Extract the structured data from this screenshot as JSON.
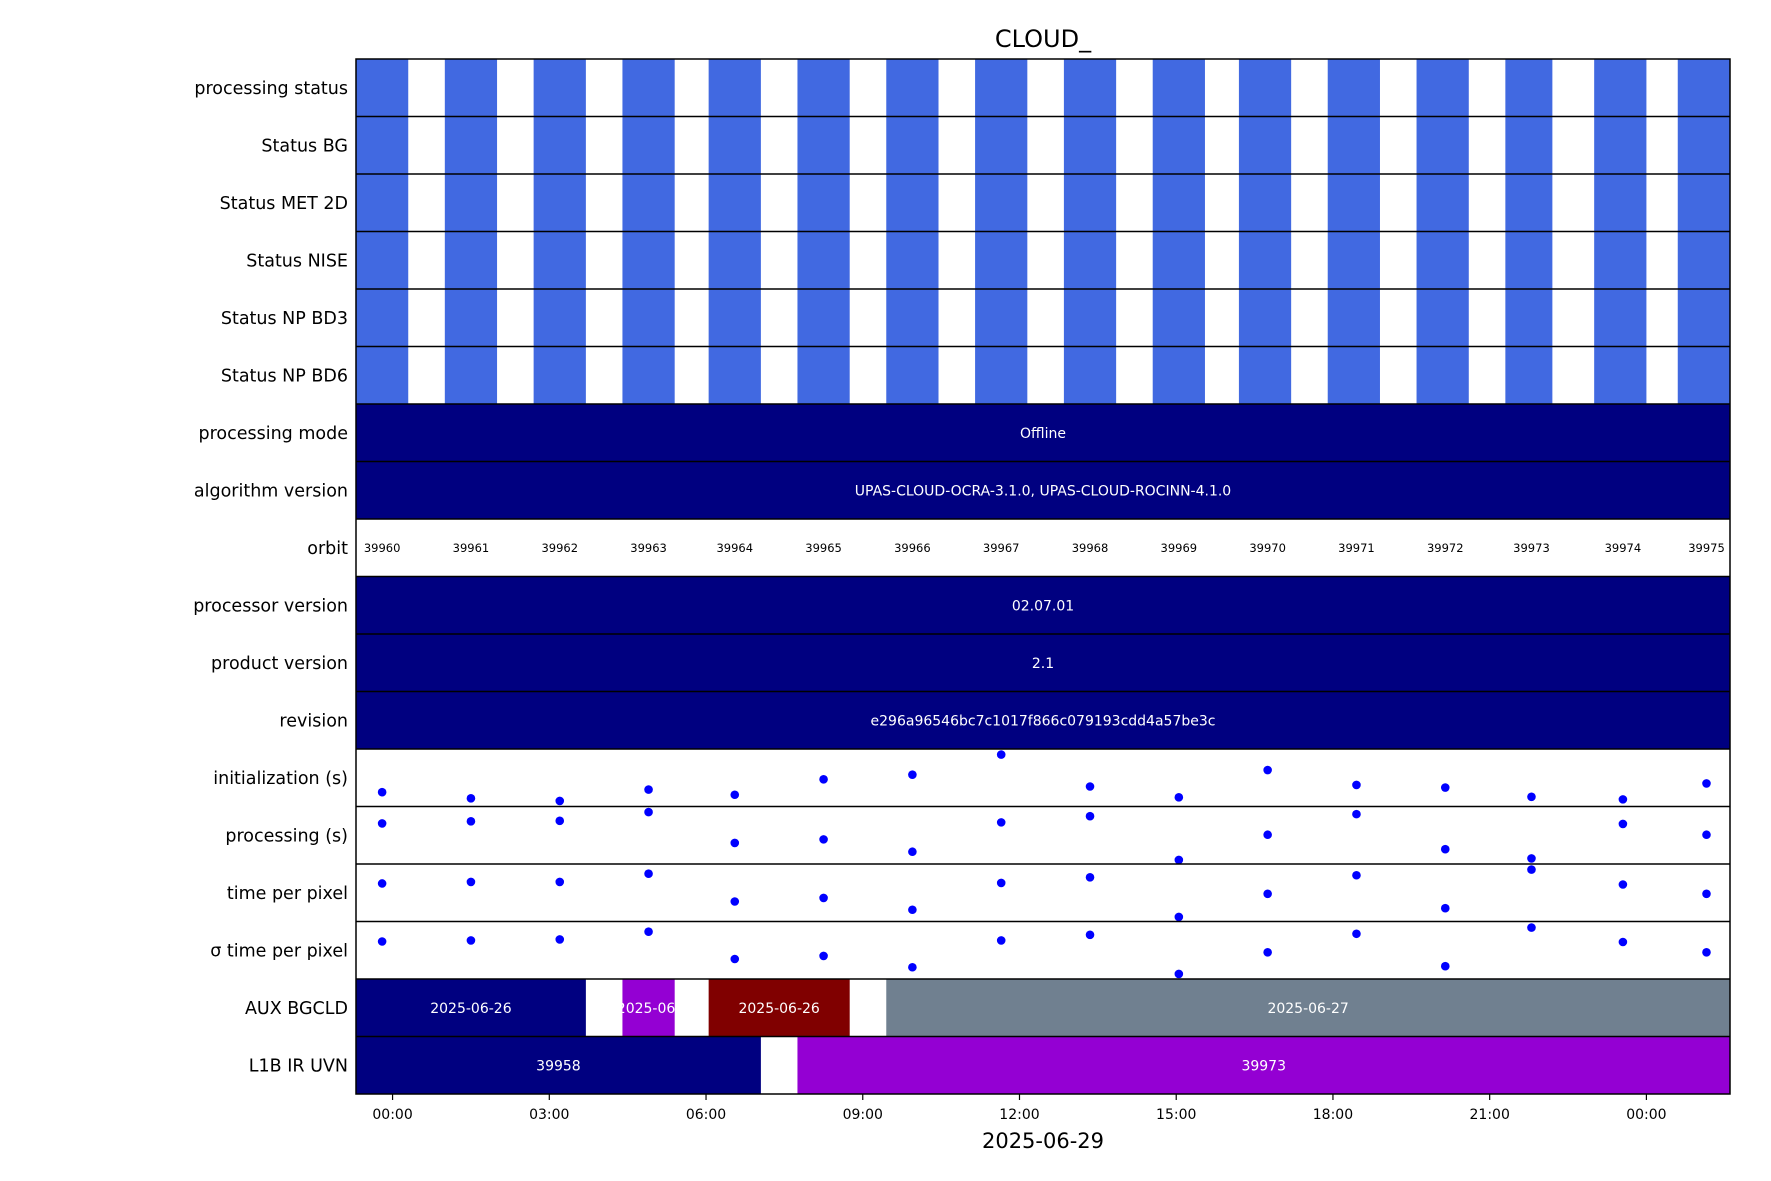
{
  "chart_data": {
    "type": "timeline",
    "title": "CLOUD_",
    "xlabel": "2025-06-29",
    "x_ticks": [
      "00:00",
      "03:00",
      "06:00",
      "09:00",
      "12:00",
      "15:00",
      "18:00",
      "21:00",
      "00:00"
    ],
    "x_tick_hours": [
      0,
      3,
      6,
      9,
      12,
      15,
      18,
      21,
      24
    ],
    "xlim_hours": [
      -0.7,
      25.6
    ],
    "colors": {
      "status_ok": "#4169e1",
      "navy": "#000080",
      "purple": "#9400d3",
      "darkred": "#800000",
      "slategray": "#708090",
      "points": "#0000ff"
    },
    "status_rows": [
      {
        "label": "processing status"
      },
      {
        "label": "Status BG"
      },
      {
        "label": "Status MET 2D"
      },
      {
        "label": "Status NISE"
      },
      {
        "label": "Status NP BD3"
      },
      {
        "label": "Status NP BD6"
      }
    ],
    "status_blocks_hours": [
      [
        -0.7,
        0.3
      ],
      [
        1.0,
        2.0
      ],
      [
        2.7,
        3.7
      ],
      [
        4.4,
        5.4
      ],
      [
        6.05,
        7.05
      ],
      [
        7.75,
        8.75
      ],
      [
        9.45,
        10.45
      ],
      [
        11.15,
        12.15
      ],
      [
        12.85,
        13.85
      ],
      [
        14.55,
        15.55
      ],
      [
        16.2,
        17.2
      ],
      [
        17.9,
        18.9
      ],
      [
        19.6,
        20.6
      ],
      [
        21.3,
        22.2
      ],
      [
        23.0,
        24.0
      ],
      [
        24.6,
        25.6
      ]
    ],
    "processing_mode": {
      "label": "processing mode",
      "value": "Offline"
    },
    "algorithm_version": {
      "label": "algorithm version",
      "value": "UPAS-CLOUD-OCRA-3.1.0, UPAS-CLOUD-ROCINN-4.1.0"
    },
    "orbit": {
      "label": "orbit",
      "values": [
        "39960",
        "39961",
        "39962",
        "39963",
        "39964",
        "39965",
        "39966",
        "39967",
        "39968",
        "39969",
        "39970",
        "39971",
        "39972",
        "39973",
        "39974",
        "39975"
      ],
      "hours": [
        -0.2,
        1.5,
        3.2,
        4.9,
        6.55,
        8.25,
        9.95,
        11.65,
        13.35,
        15.05,
        16.75,
        18.45,
        20.15,
        21.8,
        23.55,
        25.15
      ]
    },
    "processor_version": {
      "label": "processor version",
      "value": "02.07.01"
    },
    "product_version": {
      "label": "product version",
      "value": "2.1"
    },
    "revision": {
      "label": "revision",
      "value": "e296a96546bc7c1017f866c079193cdd4a57be3c"
    },
    "scatter_rows": [
      {
        "label": "initialization (s)",
        "x_hours": [
          -0.2,
          1.5,
          3.2,
          4.9,
          6.55,
          8.25,
          9.95,
          11.65,
          13.35,
          15.05,
          16.75,
          18.45,
          20.15,
          21.8,
          23.55,
          25.15
        ],
        "values": [
          0.22,
          0.1,
          0.05,
          0.27,
          0.17,
          0.47,
          0.56,
          0.95,
          0.33,
          0.12,
          0.65,
          0.36,
          0.31,
          0.13,
          0.08,
          0.39
        ]
      },
      {
        "label": "processing (s)",
        "x_hours": [
          -0.2,
          1.5,
          3.2,
          4.9,
          6.55,
          8.25,
          9.95,
          11.65,
          13.35,
          15.05,
          16.75,
          18.45,
          20.15,
          21.8,
          23.55,
          25.15
        ],
        "values": [
          0.73,
          0.77,
          0.78,
          0.95,
          0.35,
          0.42,
          0.18,
          0.75,
          0.87,
          0.02,
          0.51,
          0.91,
          0.23,
          0.05,
          0.72,
          0.51
        ]
      },
      {
        "label": "time per pixel",
        "x_hours": [
          -0.2,
          1.5,
          3.2,
          4.9,
          6.55,
          8.25,
          9.95,
          11.65,
          13.35,
          15.05,
          16.75,
          18.45,
          20.15,
          21.8,
          23.55,
          25.15
        ],
        "values": [
          0.68,
          0.71,
          0.71,
          0.87,
          0.33,
          0.4,
          0.17,
          0.69,
          0.8,
          0.03,
          0.48,
          0.84,
          0.2,
          0.95,
          0.66,
          0.48
        ]
      },
      {
        "label": "σ time per pixel",
        "x_hours": [
          -0.2,
          1.5,
          3.2,
          4.9,
          6.55,
          8.25,
          9.95,
          11.65,
          13.35,
          15.05,
          16.75,
          18.45,
          20.15,
          21.8,
          23.55,
          25.15
        ],
        "values": [
          0.67,
          0.69,
          0.71,
          0.86,
          0.33,
          0.39,
          0.17,
          0.69,
          0.8,
          0.04,
          0.46,
          0.82,
          0.19,
          0.94,
          0.66,
          0.46
        ]
      }
    ],
    "aux_bgcld": {
      "label": "AUX BGCLD",
      "segments": [
        {
          "start": -0.7,
          "end": 3.7,
          "color": "#000080",
          "text": "2025-06-26"
        },
        {
          "start": 4.4,
          "end": 5.4,
          "color": "#9400d3",
          "text": "2025-06-"
        },
        {
          "start": 6.05,
          "end": 8.75,
          "color": "#800000",
          "text": "2025-06-26"
        },
        {
          "start": 9.45,
          "end": 25.6,
          "color": "#708090",
          "text": "2025-06-27"
        }
      ]
    },
    "l1b_ir_uvn": {
      "label": "L1B IR UVN",
      "segments": [
        {
          "start": -0.7,
          "end": 7.05,
          "color": "#000080",
          "text": "39958"
        },
        {
          "start": 7.75,
          "end": 25.6,
          "color": "#9400d3",
          "text": "39973"
        }
      ]
    }
  }
}
